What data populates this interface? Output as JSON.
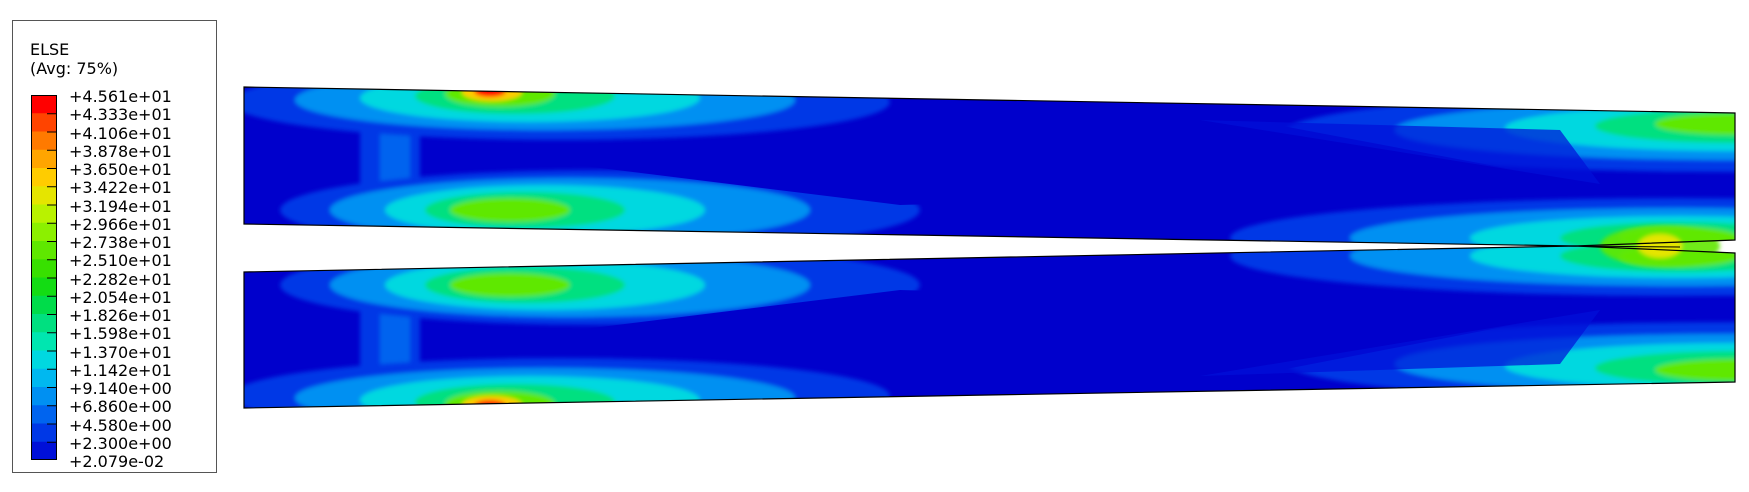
{
  "legend": {
    "title": "ELSE",
    "subtitle": "(Avg: 75%)",
    "labels": [
      "+4.561e+01",
      "+4.333e+01",
      "+4.106e+01",
      "+3.878e+01",
      "+3.650e+01",
      "+3.422e+01",
      "+3.194e+01",
      "+2.966e+01",
      "+2.738e+01",
      "+2.510e+01",
      "+2.282e+01",
      "+2.054e+01",
      "+1.826e+01",
      "+1.598e+01",
      "+1.370e+01",
      "+1.142e+01",
      "+9.140e+00",
      "+6.860e+00",
      "+4.580e+00",
      "+2.300e+00",
      "+2.079e-02"
    ],
    "colors": [
      "#ff0000",
      "#ff4400",
      "#ff7a00",
      "#ffa500",
      "#ffcc00",
      "#e5e500",
      "#b9f200",
      "#8cf000",
      "#5fe800",
      "#38e000",
      "#13dc13",
      "#00dc4a",
      "#00e080",
      "#00e6b0",
      "#00d8e0",
      "#00b8f0",
      "#0090f2",
      "#0064ef",
      "#0038e6",
      "#0010d8"
    ]
  },
  "contour": {
    "background": "#0000cc",
    "outline": "#000000"
  }
}
